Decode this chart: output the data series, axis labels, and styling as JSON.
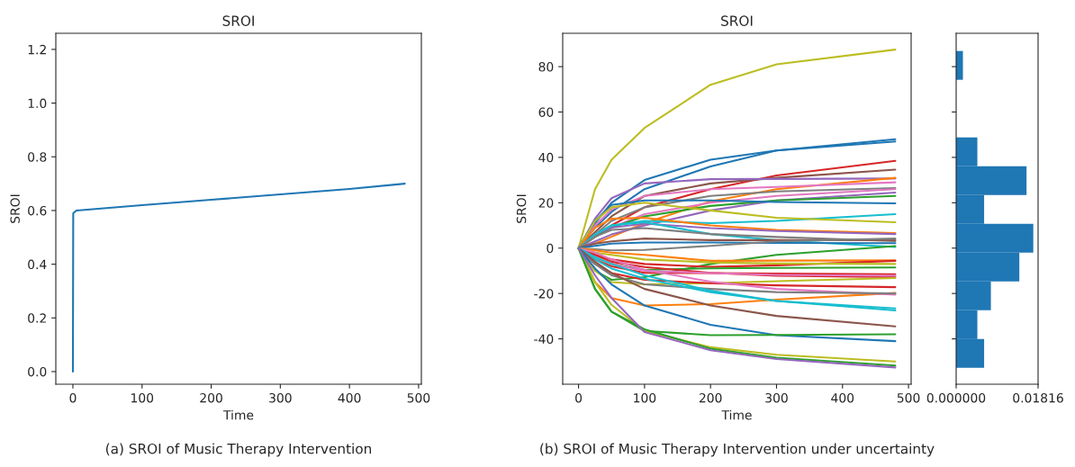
{
  "chart_data": [
    {
      "type": "line",
      "title": "SROI",
      "xlabel": "Time",
      "ylabel": "SROI",
      "annotations": [
        "(a) SROI of Music Therapy Intervention"
      ],
      "x": [
        0,
        0.5,
        5,
        100,
        200,
        300,
        400,
        480
      ],
      "series": [
        {
          "color": "#1f77b4",
          "values": [
            0,
            0.59,
            0.6,
            0.62,
            0.64,
            0.66,
            0.68,
            0.7
          ]
        }
      ],
      "xlim": [
        -24.7,
        504
      ],
      "ylim": [
        -0.047,
        1.26
      ],
      "xticks": [
        0,
        100,
        200,
        300,
        400,
        500
      ],
      "yticks": [
        {
          "value": 0,
          "label": "0.0"
        },
        0.2,
        0.4,
        0.6,
        0.8,
        {
          "value": 1,
          "label": "1.0"
        },
        1.2
      ],
      "grid": false,
      "legend": false
    },
    {
      "type": "line",
      "title": "SROI",
      "xlabel": "Time",
      "ylabel": "SROI",
      "annotations": [
        "(b) SROI of Music Therapy Intervention under uncertainty"
      ],
      "x": [
        0,
        25,
        50,
        100,
        200,
        300,
        480
      ],
      "series": [
        {
          "color": "#bcbd22",
          "values": [
            0,
            26,
            39,
            53,
            72,
            81,
            87.5
          ]
        },
        {
          "color": "#1f77b4",
          "values": [
            0,
            11,
            20,
            30,
            39,
            43,
            48
          ]
        },
        {
          "color": "#1f77b4",
          "values": [
            0,
            9,
            16,
            26,
            36,
            43,
            47
          ]
        },
        {
          "color": "#d62728",
          "values": [
            0,
            5,
            10,
            18,
            26,
            32,
            38.5
          ]
        },
        {
          "color": "#8c564b",
          "values": [
            0,
            7,
            14,
            23,
            28.5,
            31,
            34.6
          ]
        },
        {
          "color": "#9467bd",
          "values": [
            0,
            13,
            22,
            28.5,
            30.4,
            30.5,
            30.7
          ]
        },
        {
          "color": "#ff7f0e",
          "values": [
            0,
            2,
            5,
            11,
            20.6,
            26,
            31
          ]
        },
        {
          "color": "#e377c2",
          "values": [
            0,
            10,
            17,
            23,
            26,
            27,
            29
          ]
        },
        {
          "color": "#7f7f7f",
          "values": [
            0,
            6,
            12,
            18,
            23,
            25,
            26.5
          ]
        },
        {
          "color": "#e377c2",
          "values": [
            0,
            5,
            9,
            15,
            20,
            23,
            26
          ]
        },
        {
          "color": "#9467bd",
          "values": [
            0,
            3,
            6,
            10,
            16.6,
            21,
            24.5
          ]
        },
        {
          "color": "#2ca02c",
          "values": [
            0,
            5,
            9,
            14,
            18.6,
            21,
            23
          ]
        },
        {
          "color": "#1f77b4",
          "values": [
            0,
            12,
            19,
            21,
            21,
            20.3,
            19.7
          ]
        },
        {
          "color": "#17becf",
          "values": [
            0,
            6,
            10,
            12,
            11,
            12,
            15
          ]
        },
        {
          "color": "#bcbd22",
          "values": [
            0,
            12,
            18,
            20,
            16.6,
            13.4,
            11.4
          ]
        },
        {
          "color": "#ff7f0e",
          "values": [
            0,
            9,
            13,
            13.4,
            10,
            8,
            6.6
          ]
        },
        {
          "color": "#9467bd",
          "values": [
            0,
            6,
            9,
            10.8,
            8.8,
            7.5,
            6.2
          ]
        },
        {
          "color": "#17becf",
          "values": [
            0,
            6,
            10,
            11.4,
            6.2,
            3.5,
            0.5
          ]
        },
        {
          "color": "#7f7f7f",
          "values": [
            0,
            5,
            8,
            8.8,
            6.2,
            4.9,
            3.1
          ]
        },
        {
          "color": "#8c564b",
          "values": [
            0,
            2,
            3,
            4.2,
            3.5,
            3.5,
            3.5
          ]
        },
        {
          "color": "#1f77b4",
          "values": [
            0,
            1,
            2,
            2.5,
            2.5,
            2.3,
            2.2
          ]
        },
        {
          "color": "#7f7f7f",
          "values": [
            0,
            -0.5,
            -1,
            -0.8,
            1,
            3,
            4.2
          ]
        },
        {
          "color": "#2ca02c",
          "values": [
            0,
            -10,
            -14,
            -12.8,
            -7,
            -3,
            0.9
          ]
        },
        {
          "color": "#ff7f0e",
          "values": [
            0,
            -1,
            -2,
            -3,
            -5.6,
            -5.5,
            -5.4
          ]
        },
        {
          "color": "#d62728",
          "values": [
            0,
            -3,
            -5,
            -7,
            -8.3,
            -7.6,
            -5.6
          ]
        },
        {
          "color": "#bcbd22",
          "values": [
            0,
            -2,
            -3,
            -5,
            -6.3,
            -6.8,
            -7
          ]
        },
        {
          "color": "#2ca02c",
          "values": [
            0,
            -4,
            -7,
            -9.6,
            -8.9,
            -8.7,
            -8.5
          ]
        },
        {
          "color": "#d62728",
          "values": [
            0,
            -5,
            -8,
            -10.9,
            -11,
            -11.2,
            -11.5
          ]
        },
        {
          "color": "#d62728",
          "values": [
            0,
            -3,
            -6,
            -8.3,
            -10.9,
            -12.2,
            -12.8
          ]
        },
        {
          "color": "#e377c2",
          "values": [
            0,
            -4,
            -7,
            -10,
            -11,
            -11.8,
            -12.2
          ]
        },
        {
          "color": "#bcbd22",
          "values": [
            0,
            -10,
            -15,
            -16,
            -15.5,
            -14.6,
            -13.2
          ]
        },
        {
          "color": "#d62728",
          "values": [
            0,
            -7,
            -11,
            -14,
            -15.5,
            -16.4,
            -17.2
          ]
        },
        {
          "color": "#ff7f0e",
          "values": [
            0,
            -15,
            -22,
            -25.3,
            -24.7,
            -22.7,
            -19.8
          ]
        },
        {
          "color": "#e377c2",
          "values": [
            0,
            -2,
            -5,
            -9.6,
            -14.8,
            -18,
            -20.5
          ]
        },
        {
          "color": "#7f7f7f",
          "values": [
            0,
            -7,
            -12,
            -16,
            -18,
            -19.4,
            -20
          ]
        },
        {
          "color": "#17becf",
          "values": [
            0,
            -5,
            -9,
            -13.5,
            -19.4,
            -23.3,
            -26.6
          ]
        },
        {
          "color": "#17becf",
          "values": [
            0,
            -4,
            -7,
            -12,
            -18.8,
            -23.3,
            -27.5
          ]
        },
        {
          "color": "#8c564b",
          "values": [
            0,
            -6,
            -11,
            -18,
            -25.3,
            -29.9,
            -34.5
          ]
        },
        {
          "color": "#1f77b4",
          "values": [
            0,
            -9,
            -16,
            -25.3,
            -33.8,
            -38.4,
            -41
          ]
        },
        {
          "color": "#2ca02c",
          "values": [
            0,
            -18,
            -28,
            -36.5,
            -38.4,
            -38.3,
            -38
          ]
        },
        {
          "color": "#bcbd22",
          "values": [
            0,
            -15,
            -25,
            -36.5,
            -43.7,
            -47,
            -50
          ]
        },
        {
          "color": "#2ca02c",
          "values": [
            0,
            -18,
            -28,
            -35.8,
            -44.3,
            -48.3,
            -51.8
          ]
        },
        {
          "color": "#9467bd",
          "values": [
            0,
            -12,
            -22,
            -37,
            -45,
            -48.9,
            -52.6
          ]
        }
      ],
      "xlim": [
        -24,
        504
      ],
      "ylim": [
        -60,
        94.7
      ],
      "xticks": [
        0,
        100,
        200,
        300,
        400,
        500
      ],
      "yticks": [
        -40,
        -20,
        0,
        20,
        40,
        60,
        80
      ],
      "grid": false,
      "legend": false
    },
    {
      "type": "histogram",
      "orientation": "horizontal",
      "bins": [
        -52.8,
        -40.1,
        -27.4,
        -14.7,
        -2.0,
        10.7,
        23.4,
        36.1,
        48.8,
        61.5,
        74.2,
        86.9
      ],
      "values": [
        0.0062,
        0.0047,
        0.0077,
        0.014,
        0.0171,
        0.0062,
        0.0156,
        0.0047,
        0,
        0,
        0.0015
      ],
      "color": "#1f77b4",
      "xlim": [
        0,
        0.01816
      ],
      "xticks": [
        {
          "value": 0,
          "label": "0.000000"
        },
        0.01816
      ],
      "ylim": [
        -60,
        94.7
      ],
      "yticks": [
        {
          "value": -40,
          "label": null
        },
        {
          "value": -20,
          "label": null
        },
        {
          "value": 0,
          "label": null
        },
        {
          "value": 20,
          "label": null
        },
        {
          "value": 40,
          "label": null
        },
        {
          "value": 60,
          "label": null
        },
        {
          "value": 80,
          "label": null
        }
      ],
      "tick_labels": "x",
      "grid": false
    }
  ]
}
